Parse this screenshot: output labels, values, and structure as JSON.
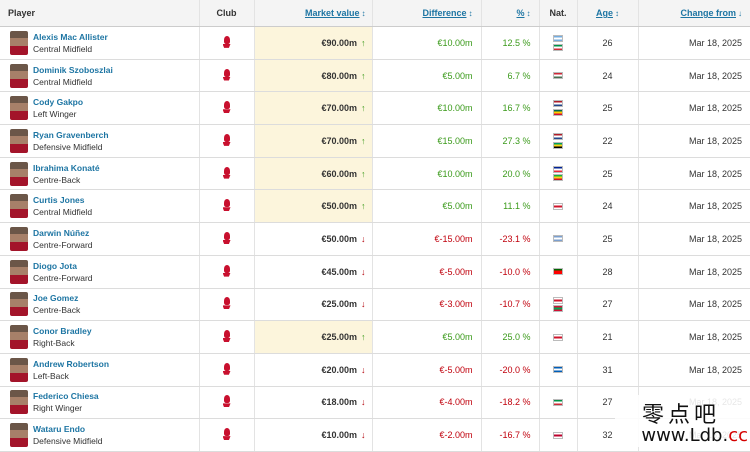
{
  "columns": {
    "player": "Player",
    "club": "Club",
    "market_value": "Market value",
    "difference": "Difference",
    "percent": "%",
    "nat": "Nat.",
    "age": "Age",
    "change_from": "Change from"
  },
  "sort_arrow": "↕",
  "sort_arrow_active": "↓",
  "colors": {
    "link": "#1d75a3",
    "up": "#3a9a1a",
    "down": "#c0000c",
    "highlight": "#fcf5dc"
  },
  "rows": [
    {
      "name": "Alexis Mac Allister",
      "position": "Central Midfield",
      "value": "€90.00m",
      "trend": "up",
      "diff": "€10.00m",
      "pct": "12.5 %",
      "flags": [
        [
          "#74acdf",
          "#fff",
          "#74acdf"
        ],
        [
          "#009246",
          "#fff",
          "#ce2b37"
        ]
      ],
      "age": "26",
      "date": "Mar 18, 2025"
    },
    {
      "name": "Dominik Szoboszlai",
      "position": "Central Midfield",
      "value": "€80.00m",
      "trend": "up",
      "diff": "€5.00m",
      "pct": "6.7 %",
      "flags": [
        [
          "#ce2939",
          "#fff",
          "#477050"
        ]
      ],
      "age": "24",
      "date": "Mar 18, 2025"
    },
    {
      "name": "Cody Gakpo",
      "position": "Left Winger",
      "value": "€70.00m",
      "trend": "up",
      "diff": "€10.00m",
      "pct": "16.7 %",
      "flags": [
        [
          "#ae1c28",
          "#fff",
          "#21468b"
        ],
        [
          "#006a4e",
          "#ffce00",
          "#d21034"
        ]
      ],
      "age": "25",
      "date": "Mar 18, 2025"
    },
    {
      "name": "Ryan Gravenberch",
      "position": "Defensive Midfield",
      "value": "€70.00m",
      "trend": "up",
      "diff": "€15.00m",
      "pct": "27.3 %",
      "flags": [
        [
          "#ae1c28",
          "#fff",
          "#21468b"
        ],
        [
          "#009e60",
          "#f9d616",
          "#000"
        ]
      ],
      "age": "22",
      "date": "Mar 18, 2025"
    },
    {
      "name": "Ibrahima Konaté",
      "position": "Centre-Back",
      "value": "€60.00m",
      "trend": "up",
      "diff": "€10.00m",
      "pct": "20.0 %",
      "flags": [
        [
          "#002395",
          "#fff",
          "#ed2939"
        ],
        [
          "#14b53a",
          "#fcd116",
          "#ce1126"
        ]
      ],
      "age": "25",
      "date": "Mar 18, 2025"
    },
    {
      "name": "Curtis Jones",
      "position": "Central Midfield",
      "value": "€50.00m",
      "trend": "up",
      "diff": "€5.00m",
      "pct": "11.1 %",
      "flags": [
        [
          "#fff",
          "#cf142b",
          "#fff"
        ]
      ],
      "age": "24",
      "date": "Mar 18, 2025"
    },
    {
      "name": "Darwin Núñez",
      "position": "Centre-Forward",
      "value": "€50.00m",
      "trend": "down",
      "diff": "€-15.00m",
      "pct": "-23.1 %",
      "flags": [
        [
          "#7b9fce",
          "#fff",
          "#7b9fce"
        ]
      ],
      "age": "25",
      "date": "Mar 18, 2025"
    },
    {
      "name": "Diogo Jota",
      "position": "Centre-Forward",
      "value": "€45.00m",
      "trend": "down",
      "diff": "€-5.00m",
      "pct": "-10.0 %",
      "flags": [
        [
          "#006600",
          "#ff0000",
          "#ff0000"
        ]
      ],
      "age": "28",
      "date": "Mar 18, 2025"
    },
    {
      "name": "Joe Gomez",
      "position": "Centre-Back",
      "value": "€25.00m",
      "trend": "down",
      "diff": "€-3.00m",
      "pct": "-10.7 %",
      "flags": [
        [
          "#fff",
          "#cf142b",
          "#fff"
        ],
        [
          "#d21034",
          "#00a651",
          "#d21034"
        ]
      ],
      "age": "27",
      "date": "Mar 18, 2025"
    },
    {
      "name": "Conor Bradley",
      "position": "Right-Back",
      "value": "€25.00m",
      "trend": "up",
      "diff": "€5.00m",
      "pct": "25.0 %",
      "flags": [
        [
          "#fff",
          "#cf142b",
          "#fff"
        ]
      ],
      "age": "21",
      "date": "Mar 18, 2025"
    },
    {
      "name": "Andrew Robertson",
      "position": "Left-Back",
      "value": "€20.00m",
      "trend": "down",
      "diff": "€-5.00m",
      "pct": "-20.0 %",
      "flags": [
        [
          "#005eb8",
          "#fff",
          "#005eb8"
        ]
      ],
      "age": "31",
      "date": "Mar 18, 2025"
    },
    {
      "name": "Federico Chiesa",
      "position": "Right Winger",
      "value": "€18.00m",
      "trend": "down",
      "diff": "€-4.00m",
      "pct": "-18.2 %",
      "flags": [
        [
          "#009246",
          "#fff",
          "#ce2b37"
        ]
      ],
      "age": "27",
      "date": "Mar 18, 2025"
    },
    {
      "name": "Wataru Endo",
      "position": "Defensive Midfield",
      "value": "€10.00m",
      "trend": "down",
      "diff": "€-2.00m",
      "pct": "-16.7 %",
      "flags": [
        [
          "#fff",
          "#bc002d",
          "#fff"
        ]
      ],
      "age": "32",
      "date": "Mar 18, 2025"
    }
  ],
  "watermark": {
    "top": "零点吧",
    "bottom_main": "www.Ldb.",
    "bottom_accent": "cc"
  }
}
